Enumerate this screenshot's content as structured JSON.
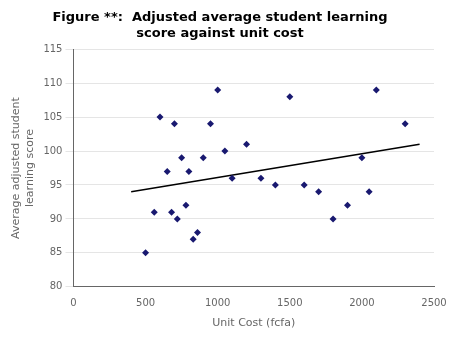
{
  "chart_data": {
    "type": "scatter",
    "title": "Figure **:  Adjusted average student learning\nscore against unit cost",
    "x_label": "Unit Cost (fcfa)",
    "y_label": "Average adjusted student\nlearning score",
    "xlim": [
      0,
      2500
    ],
    "ylim": [
      80,
      115
    ],
    "xticks": [
      0,
      500,
      1000,
      1500,
      2000,
      2500
    ],
    "yticks": [
      80,
      85,
      90,
      95,
      100,
      105,
      110,
      115
    ],
    "grid": "y",
    "series": [
      {
        "type": "scatter",
        "color": "#191970",
        "marker": "diamond",
        "x": [
          500,
          560,
          600,
          650,
          680,
          700,
          720,
          750,
          780,
          800,
          830,
          860,
          900,
          950,
          1000,
          1050,
          1100,
          1200,
          1300,
          1400,
          1500,
          1600,
          1700,
          1800,
          1900,
          2000,
          2050,
          2100,
          2300
        ],
        "values": [
          85,
          91,
          105,
          97,
          91,
          104,
          90,
          99,
          92,
          97,
          87,
          88,
          99,
          104,
          109,
          100,
          96,
          101,
          96,
          95,
          108,
          95,
          94,
          90,
          92,
          99,
          94,
          109,
          104
        ]
      },
      {
        "type": "line",
        "color": "#000000",
        "line_style": "solid",
        "x": [
          400,
          2400
        ],
        "values": [
          94.0,
          101.0
        ]
      }
    ]
  }
}
